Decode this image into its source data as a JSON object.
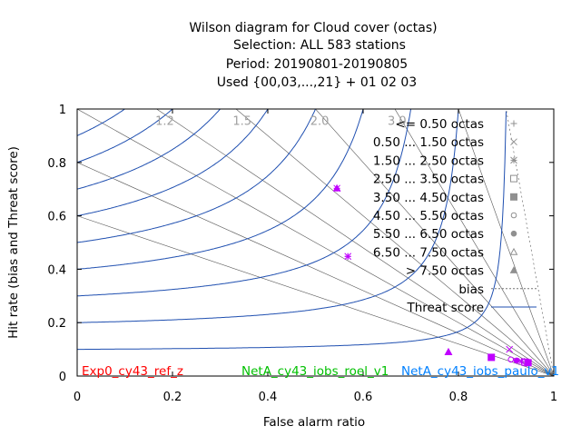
{
  "title_lines": [
    "Wilson diagram  for Cloud cover (octas)",
    "Selection: ALL    583 stations",
    "Period: 20190801-20190805",
    "Used {00,03,...,21} + 01 02 03"
  ],
  "chart_data": {
    "type": "scatter",
    "xlabel": "False alarm ratio",
    "ylabel": "Hit rate (bias and Threat score)",
    "xlim": [
      0,
      1
    ],
    "ylim": [
      0,
      1
    ],
    "xticks": [
      "0",
      "0.2",
      "0.4",
      "0.6",
      "0.8",
      "1"
    ],
    "yticks": [
      "0",
      "0.2",
      "0.4",
      "0.6",
      "0.8",
      "1"
    ],
    "bias_isolines": [
      0.6,
      0.8,
      1.0,
      1.2,
      1.5,
      2.0,
      3.0,
      5.0,
      10.0
    ],
    "bias_labels": [
      "1.2",
      "1.5",
      "2.0",
      "3.0"
    ],
    "threat_score_isolines": [
      0.1,
      0.2,
      0.3,
      0.4,
      0.5,
      0.6,
      0.7,
      0.8,
      0.9
    ],
    "legend_position": "top-right",
    "legend": [
      {
        "label": "<= 0.50 octas",
        "marker": "plus"
      },
      {
        "label": "0.50 ... 1.50 octas",
        "marker": "cross"
      },
      {
        "label": "1.50 ... 2.50 octas",
        "marker": "star"
      },
      {
        "label": "2.50 ... 3.50 octas",
        "marker": "square"
      },
      {
        "label": "3.50 ... 4.50 octas",
        "marker": "filled-square"
      },
      {
        "label": "4.50 ... 5.50 octas",
        "marker": "circle"
      },
      {
        "label": "5.50 ... 6.50 octas",
        "marker": "filled-circle"
      },
      {
        "label": "6.50 ... 7.50 octas",
        "marker": "triangle"
      },
      {
        "label": "> 7.50 octas",
        "marker": "filled-triangle"
      },
      {
        "label": "bias",
        "marker": "dotted-line"
      },
      {
        "label": "Threat score",
        "marker": "solid-line"
      }
    ],
    "experiments": [
      {
        "name": "Exp0_cy43_ref_z",
        "color": "#ff0000"
      },
      {
        "name": "NetA_cy43_iobs_roel_v1",
        "color": "#00c000"
      },
      {
        "name": "NetA_cy43_iobs_paulo_v1",
        "color": "#0080ff"
      }
    ],
    "points": [
      {
        "x": 0.545,
        "y": 0.703,
        "marker": "plus"
      },
      {
        "x": 0.545,
        "y": 0.703,
        "marker": "cross"
      },
      {
        "x": 0.545,
        "y": 0.703,
        "marker": "filled-triangle"
      },
      {
        "x": 0.568,
        "y": 0.448,
        "marker": "star"
      },
      {
        "x": 0.568,
        "y": 0.448,
        "marker": "plus"
      },
      {
        "x": 0.779,
        "y": 0.09,
        "marker": "triangle"
      },
      {
        "x": 0.779,
        "y": 0.09,
        "marker": "filled-triangle"
      },
      {
        "x": 0.869,
        "y": 0.07,
        "marker": "filled-square"
      },
      {
        "x": 0.907,
        "y": 0.1,
        "marker": "cross"
      },
      {
        "x": 0.91,
        "y": 0.062,
        "marker": "circle"
      },
      {
        "x": 0.922,
        "y": 0.058,
        "marker": "filled-circle"
      },
      {
        "x": 0.932,
        "y": 0.055,
        "marker": "star"
      },
      {
        "x": 0.94,
        "y": 0.052,
        "marker": "square"
      },
      {
        "x": 0.946,
        "y": 0.05,
        "marker": "filled-square"
      }
    ],
    "marker_color": "#c000ff",
    "bias_line_color": "#555555",
    "threat_line_color": "#1f4fb0",
    "grid": false
  }
}
